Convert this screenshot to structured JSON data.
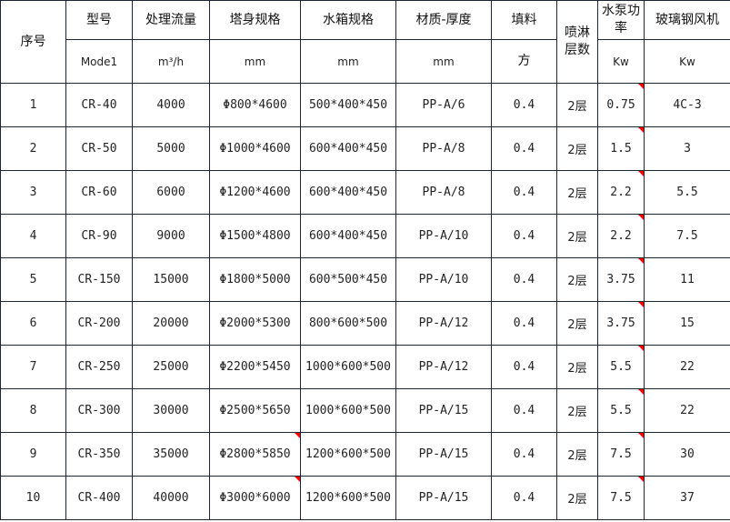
{
  "header": {
    "no": "序号",
    "model": "型号",
    "model_unit": "Mode1",
    "flow": "处理流量",
    "flow_unit": "m³/h",
    "tower": "塔身规格",
    "tower_unit": "mm",
    "tank": "水箱规格",
    "tank_unit": "mm",
    "material": "材质-厚度",
    "material_unit": "mm",
    "filler": "填料",
    "filler_unit": "方",
    "spray": "喷淋层数",
    "pump": "水泵功率",
    "pump_unit": "Kw",
    "fan": "玻璃钢风机",
    "fan_unit": "Kw"
  },
  "comment_marker_color": "#ff0000",
  "rows": [
    {
      "no": "1",
      "model": "CR-40",
      "flow": "4000",
      "tower": "Φ800*4600",
      "tank": "500*400*450",
      "material": "PP-A/6",
      "filler": "0.4",
      "spray": "2层",
      "pump": "0.75",
      "fan": "4C-3"
    },
    {
      "no": "2",
      "model": "CR-50",
      "flow": "5000",
      "tower": "Φ1000*4600",
      "tank": "600*400*450",
      "material": "PP-A/8",
      "filler": "0.4",
      "spray": "2层",
      "pump": "1.5",
      "fan": "3"
    },
    {
      "no": "3",
      "model": "CR-60",
      "flow": "6000",
      "tower": "Φ1200*4600",
      "tank": "600*400*450",
      "material": "PP-A/8",
      "filler": "0.4",
      "spray": "2层",
      "pump": "2.2",
      "fan": "5.5"
    },
    {
      "no": "4",
      "model": "CR-90",
      "flow": "9000",
      "tower": "Φ1500*4800",
      "tank": "600*400*450",
      "material": "PP-A/10",
      "filler": "0.4",
      "spray": "2层",
      "pump": "2.2",
      "fan": "7.5"
    },
    {
      "no": "5",
      "model": "CR-150",
      "flow": "15000",
      "tower": "Φ1800*5000",
      "tank": "600*500*450",
      "material": "PP-A/10",
      "filler": "0.4",
      "spray": "2层",
      "pump": "3.75",
      "fan": "11"
    },
    {
      "no": "6",
      "model": "CR-200",
      "flow": "20000",
      "tower": "Φ2000*5300",
      "tank": "800*600*500",
      "material": "PP-A/12",
      "filler": "0.4",
      "spray": "2层",
      "pump": "3.75",
      "fan": "15"
    },
    {
      "no": "7",
      "model": "CR-250",
      "flow": "25000",
      "tower": "Φ2200*5450",
      "tank": "1000*600*500",
      "material": "PP-A/12",
      "filler": "0.4",
      "spray": "2层",
      "pump": "5.5",
      "fan": "22"
    },
    {
      "no": "8",
      "model": "CR-300",
      "flow": "30000",
      "tower": "Φ2500*5650",
      "tank": "1000*600*500",
      "material": "PP-A/15",
      "filler": "0.4",
      "spray": "2层",
      "pump": "5.5",
      "fan": "22"
    },
    {
      "no": "9",
      "model": "CR-350",
      "flow": "35000",
      "tower": "Φ2800*5850",
      "tank": "1200*600*500",
      "material": "PP-A/15",
      "filler": "0.4",
      "spray": "2层",
      "pump": "7.5",
      "fan": "30"
    },
    {
      "no": "10",
      "model": "CR-400",
      "flow": "40000",
      "tower": "Φ3000*6000",
      "tank": "1200*600*500",
      "material": "PP-A/15",
      "filler": "0.4",
      "spray": "2层",
      "pump": "7.5",
      "fan": "37"
    }
  ]
}
